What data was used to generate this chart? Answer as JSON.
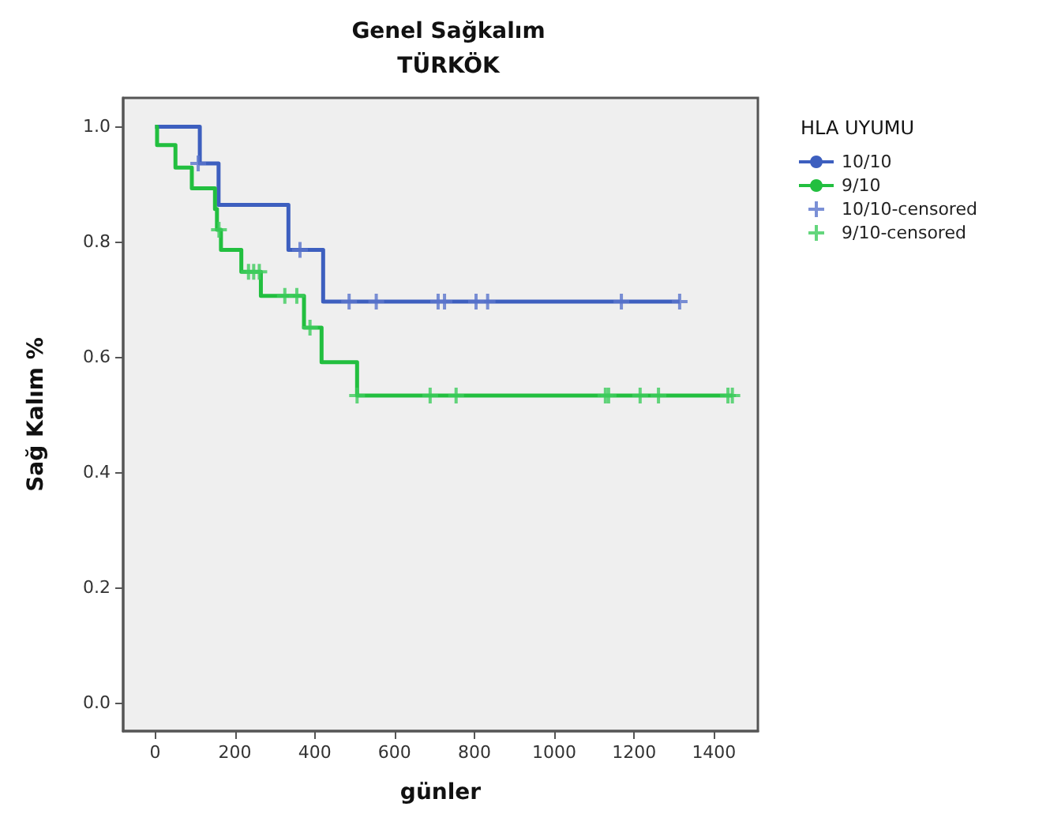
{
  "chart_data": {
    "type": "step",
    "title": "Genel Sağkalım",
    "subtitle": "TÜRKÖK",
    "xlabel": "günler",
    "ylabel": "Sağ Kalım %",
    "legend_title": "HLA UYUMU",
    "legend": "right",
    "grid": false,
    "xlim": [
      -80,
      1510
    ],
    "xticks": [
      0,
      200,
      400,
      600,
      800,
      1000,
      1200,
      1400
    ],
    "ylim": [
      -0.05,
      1.05
    ],
    "yticks": [
      {
        "value": 0,
        "label": "0.0"
      },
      {
        "value": 0.2,
        "label": "0.2"
      },
      {
        "value": 0.4,
        "label": "0.4"
      },
      {
        "value": 0.6,
        "label": "0.6"
      },
      {
        "value": 0.8,
        "label": "0.8"
      },
      {
        "value": 1,
        "label": "1.0"
      }
    ],
    "series": [
      {
        "name": "10/10",
        "color": "#3d5fbf",
        "x": [
          0,
          112,
          159,
          334,
          421,
          1314
        ],
        "values": [
          1,
          0.936,
          0.864,
          0.786,
          0.696,
          0.696
        ]
      },
      {
        "name": "9/10",
        "color": "#22bf3f",
        "x": [
          0,
          5,
          51,
          92,
          150,
          155,
          165,
          216,
          265,
          373,
          417,
          506,
          1446
        ],
        "values": [
          1,
          0.968,
          0.929,
          0.893,
          0.857,
          0.821,
          0.786,
          0.748,
          0.706,
          0.651,
          0.591,
          0.533,
          0.533
        ]
      },
      {
        "name": "10/10-censored",
        "type": "scatter",
        "marker": "cross",
        "color": "#5a74cc",
        "x": [
          108,
          363,
          486,
          554,
          709,
          725,
          804,
          833,
          1168,
          1314
        ],
        "values": [
          0.936,
          0.786,
          0.696,
          0.696,
          0.696,
          0.696,
          0.696,
          0.696,
          0.696,
          0.696
        ]
      },
      {
        "name": "9/10-censored",
        "type": "scatter",
        "marker": "cross",
        "color": "#3dcc5c",
        "x": [
          160,
          234,
          247,
          261,
          325,
          355,
          388,
          506,
          689,
          754,
          1128,
          1136,
          1215,
          1261,
          1435,
          1446
        ],
        "values": [
          0.821,
          0.748,
          0.748,
          0.748,
          0.706,
          0.706,
          0.651,
          0.533,
          0.533,
          0.533,
          0.533,
          0.533,
          0.533,
          0.533,
          0.533,
          0.533
        ]
      }
    ]
  }
}
